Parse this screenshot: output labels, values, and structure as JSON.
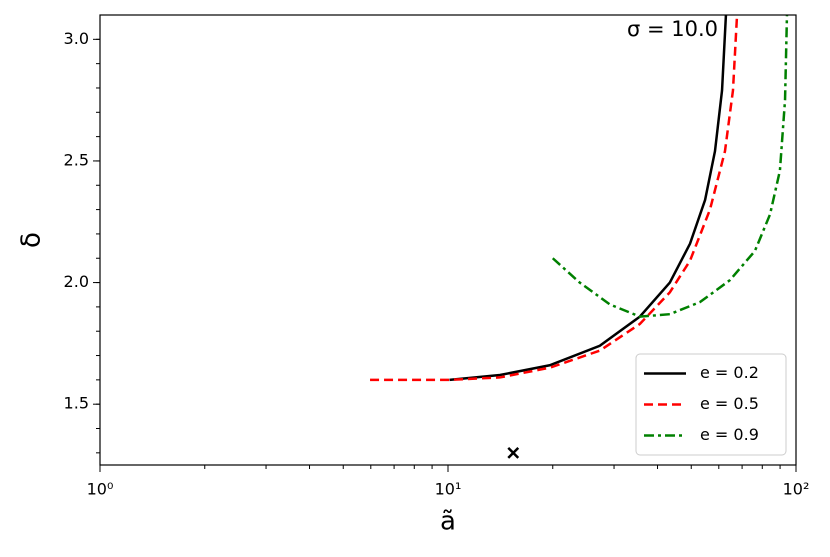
{
  "chart_data": {
    "type": "line",
    "annotation": "σ = 10.0",
    "xlabel": "ã",
    "ylabel": "δ",
    "xscale": "log",
    "xlim": [
      1,
      100
    ],
    "xticks": [
      {
        "value": 1,
        "label": "10⁰"
      },
      {
        "value": 10,
        "label": "10¹"
      },
      {
        "value": 100,
        "label": "10²"
      }
    ],
    "ylim": [
      1.25,
      3.1
    ],
    "yticks": [
      1.5,
      {
        "value": 2,
        "label": "2.0"
      },
      2.5,
      {
        "value": 3,
        "label": "3.0"
      }
    ],
    "legend": "lower right",
    "series": [
      {
        "name": "e = 0.2",
        "color": "#000000",
        "linestyle": "-",
        "x": [
          10.1,
          14.1,
          19.6,
          27.3,
          35.6,
          43.4,
          49.6,
          54.8,
          58.5,
          61.3,
          62.9
        ],
        "values": [
          1.6,
          1.62,
          1.66,
          1.74,
          1.86,
          2.0,
          2.16,
          2.34,
          2.54,
          2.79,
          3.1
        ]
      },
      {
        "name": "e = 0.5",
        "color": "#ff0000",
        "linestyle": "--",
        "x": [
          5.97,
          7.28,
          10.1,
          14.1,
          19.6,
          27.3,
          35.6,
          43.4,
          49.6,
          56.6,
          62.5,
          65.9,
          67.7
        ],
        "values": [
          1.6,
          1.6,
          1.6,
          1.61,
          1.65,
          1.72,
          1.83,
          1.96,
          2.09,
          2.3,
          2.54,
          2.79,
          3.1
        ]
      },
      {
        "name": "e = 0.9",
        "color": "#008000",
        "linestyle": "-.",
        "x": [
          20.0,
          23.9,
          29.2,
          35.6,
          43.4,
          53.0,
          64.6,
          76.2,
          84.2,
          89.9,
          93.0,
          94.2
        ],
        "values": [
          2.1,
          2.0,
          1.91,
          1.86,
          1.87,
          1.92,
          2.01,
          2.13,
          2.28,
          2.46,
          2.75,
          3.1
        ]
      }
    ],
    "marker": {
      "x": 15.4,
      "y": 1.3,
      "color": "#000000"
    }
  }
}
